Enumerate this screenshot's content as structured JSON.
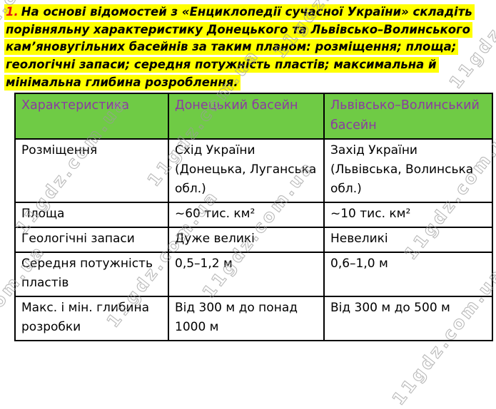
{
  "title": {
    "number": "1.",
    "lines": [
      "На основі відомостей з «Енциклопедії сучасної України» складіть",
      "порівняльну характеристику Донецького та Львівсько–Волинського",
      "кам’яновугільних басейнів за таким планом: розміщення; площа;",
      "геологічні запаси; середня потужність пластів; максимальна й",
      "мінімальна глибина розроблення."
    ]
  },
  "table": {
    "headers": [
      "Характеристика",
      "Донецький басейн",
      "Львівсько–Волинський басейн"
    ],
    "rows": [
      [
        "Розміщення",
        "Схід України (Донецька, Луганська обл.)",
        "Захід України (Львівська, Волинська обл.)"
      ],
      [
        "Площа",
        "~60 тис. км²",
        "~10 тис. км²"
      ],
      [
        "Геологічні запаси",
        "Дуже великі",
        "Невеликі"
      ],
      [
        "Середня потужність пластів",
        "0,5–1,2 м",
        "0,6–1,0 м"
      ],
      [
        "Макс. і мін. глибина розробки",
        "Від 300 м до понад 1000 м",
        "Від 300 м до 500 м"
      ]
    ]
  },
  "watermark": {
    "text": "11gdz.com.ua"
  },
  "colors": {
    "highlight": "#ffff00",
    "num_red": "#e31212",
    "header_bg": "#6fcb45",
    "header_text": "#8b3aa1",
    "border": "#000000",
    "watermark": "#9c9c9c"
  }
}
